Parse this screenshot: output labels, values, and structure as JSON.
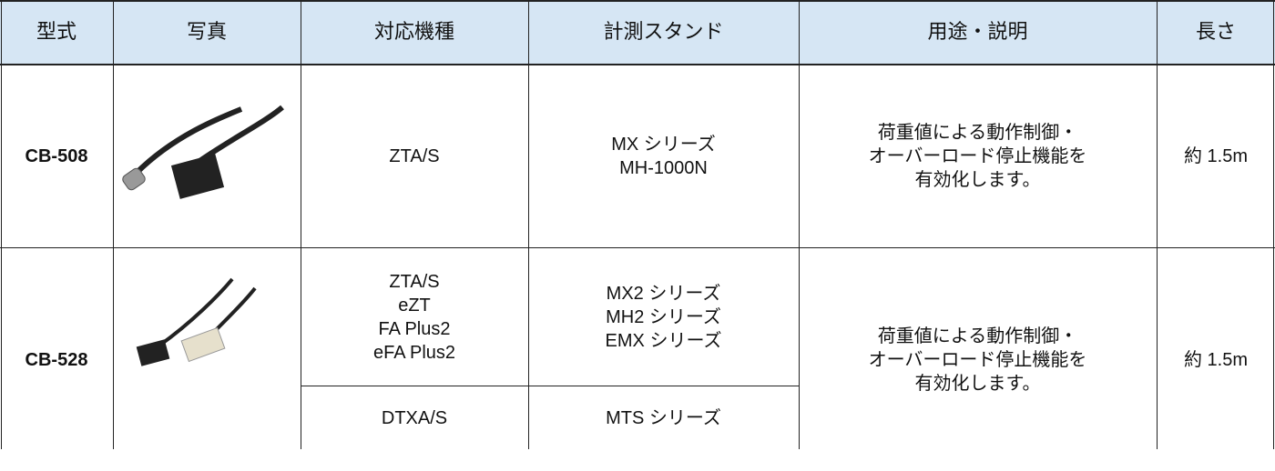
{
  "header": {
    "columns": [
      "型式",
      "写真",
      "対応機種",
      "計測スタンド",
      "用途・説明",
      "長さ"
    ]
  },
  "table": {
    "rows": [
      {
        "model": "CB-508",
        "entries": [
          {
            "compatible": [
              "ZTA/S"
            ],
            "stands": [
              "MX シリーズ",
              "MH-1000N"
            ]
          }
        ],
        "description": [
          "荷重値による動作制御・",
          "オーバーロード停止機能を",
          "有効化します。"
        ],
        "length": "約 1.5m"
      },
      {
        "model": "CB-528",
        "entries": [
          {
            "compatible": [
              "ZTA/S",
              "eZT",
              "FA Plus2",
              "eFA Plus2"
            ],
            "stands": [
              "MX2 シリーズ",
              "MH2 シリーズ",
              "EMX シリーズ"
            ]
          },
          {
            "compatible": [
              "DTXA/S"
            ],
            "stands": [
              "MTS シリーズ"
            ]
          }
        ],
        "description": [
          "荷重値による動作制御・",
          "オーバーロード停止機能を",
          "有効化します。"
        ],
        "length": "約 1.5m"
      }
    ]
  }
}
